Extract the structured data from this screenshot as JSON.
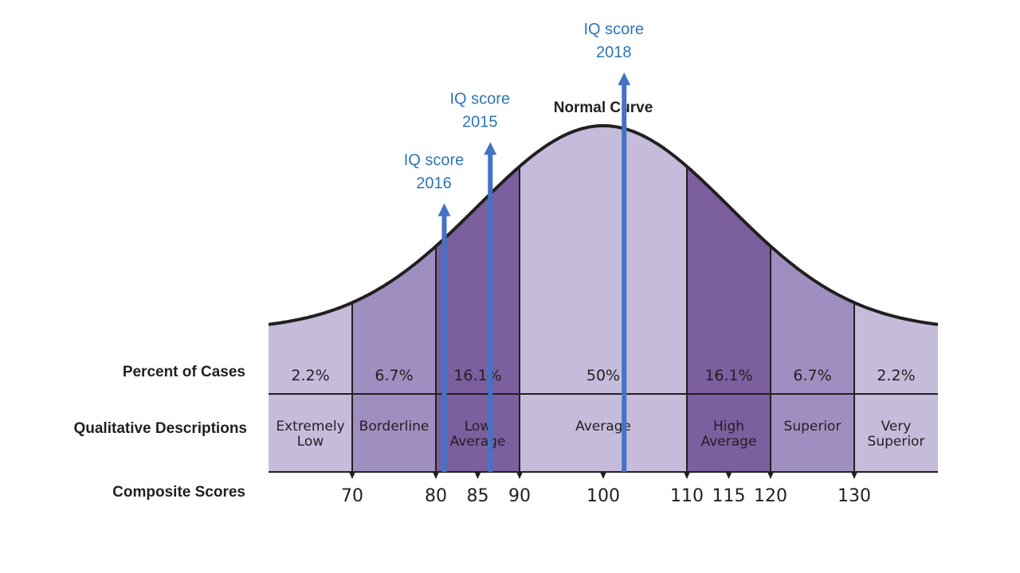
{
  "chart_data": {
    "type": "area",
    "title": "Normal Curve",
    "distribution": {
      "mean": 100,
      "sd": 15
    },
    "xlim": [
      60,
      140
    ],
    "row_labels": {
      "percent": "Percent of Cases",
      "qualitative": "Qualitative Descriptions",
      "composite": "Composite Scores"
    },
    "bands": [
      {
        "from": 60,
        "to": 70,
        "percent": "2.2%",
        "desc": [
          "Extremely",
          "Low"
        ],
        "color": "#c5bcdb"
      },
      {
        "from": 70,
        "to": 80,
        "percent": "6.7%",
        "desc": [
          "Borderline"
        ],
        "color": "#9f8fc0"
      },
      {
        "from": 80,
        "to": 90,
        "percent": "16.1%",
        "desc": [
          "Low",
          "Average"
        ],
        "color": "#7b5f9f"
      },
      {
        "from": 90,
        "to": 110,
        "percent": "50%",
        "desc": [
          "Average"
        ],
        "color": "#c5bcdb"
      },
      {
        "from": 110,
        "to": 120,
        "percent": "16.1%",
        "desc": [
          "High",
          "Average"
        ],
        "color": "#7b5f9f"
      },
      {
        "from": 120,
        "to": 130,
        "percent": "6.7%",
        "desc": [
          "Superior"
        ],
        "color": "#9f8fc0"
      },
      {
        "from": 130,
        "to": 140,
        "percent": "2.2%",
        "desc": [
          "Very",
          "Superior"
        ],
        "color": "#c5bcdb"
      }
    ],
    "ticks": [
      70,
      80,
      85,
      90,
      100,
      110,
      115,
      120,
      130
    ],
    "markers": [
      {
        "label": [
          "IQ score",
          "2016"
        ],
        "value": 81,
        "height": 0.62
      },
      {
        "label": [
          "IQ score",
          "2015"
        ],
        "value": 86.5,
        "height": 0.92
      },
      {
        "label": [
          "IQ score",
          "2018"
        ],
        "value": 102.5,
        "height": 1.26
      }
    ],
    "colors": {
      "curve": "#231f20",
      "marker": "#4472c4",
      "marker_label": "#2e75b6"
    }
  }
}
